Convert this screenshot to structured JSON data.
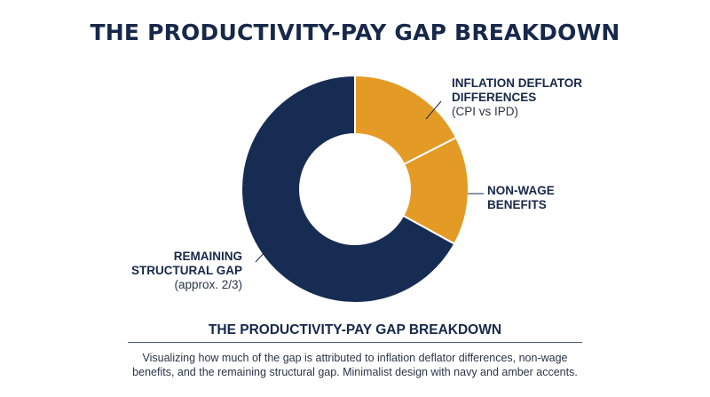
{
  "title": "THE PRODUCTIVITY-PAY GAP BREAKDOWN",
  "subtitle": "THE PRODUCTIVITY-PAY GAP BREAKDOWN",
  "description": "Visualizing how much of the gap is attributed to inflation deflator differences, non-wage benefits, and the remaining structural gap. Minimalist design with navy and amber accents.",
  "labels": {
    "inflation": {
      "name": "INFLATION DEFLATOR",
      "name2": "DIFFERENCES",
      "note": "(CPI vs IPD)"
    },
    "nonwage": {
      "name": "NON-WAGE",
      "name2": "BENEFITS"
    },
    "remaining": {
      "name": "REMAINING",
      "name2": "STRUCTURAL GAP",
      "note": "(approx. 2/3)"
    }
  },
  "colors": {
    "navy": "#172c53",
    "amber": "#e39b25",
    "text": "#17284a"
  },
  "chart_data": {
    "type": "pie",
    "donut": true,
    "title": "THE PRODUCTIVITY-PAY GAP BREAKDOWN",
    "categories": [
      "INFLATION DEFLATOR DIFFERENCES (CPI vs IPD)",
      "NON-WAGE BENEFITS",
      "REMAINING STRUCTURAL GAP (approx. 2/3)"
    ],
    "values": [
      17.5,
      15.5,
      67
    ],
    "unit": "percent of gap (estimated)",
    "colors": [
      "#e39b25",
      "#e39b25",
      "#172c53"
    ],
    "start_angle_deg": 0,
    "direction": "clockwise",
    "legend": "none"
  }
}
